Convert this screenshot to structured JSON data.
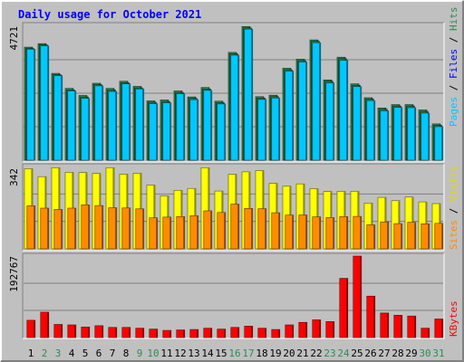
{
  "title": "Daily usage for October 2021",
  "colors": {
    "background": "#c0c0c0",
    "pages": "#00c8ff",
    "hits": "#2e8b57",
    "visits": "#ffff00",
    "sites": "#ff8c00",
    "kbytes": "#ff0000",
    "weekday_label": "#000000",
    "weekend_label": "#2e8b57",
    "separator": "#000000"
  },
  "legend": {
    "pages": "Pages",
    "files": "Files",
    "hits": "Hits",
    "visits": "Visits",
    "sites": "Sites",
    "kbytes": "KBytes",
    "separator": " / "
  },
  "chart_data": [
    {
      "type": "bar",
      "name": "hits-files-pages",
      "ymax_label": "4721",
      "ylim": [
        0,
        4721
      ],
      "categories": [
        "1",
        "2",
        "3",
        "4",
        "5",
        "6",
        "7",
        "8",
        "9",
        "10",
        "11",
        "12",
        "13",
        "14",
        "15",
        "16",
        "17",
        "18",
        "19",
        "20",
        "21",
        "22",
        "23",
        "24",
        "25",
        "26",
        "27",
        "28",
        "29",
        "30",
        "31"
      ],
      "weekend_days": [
        "2",
        "3",
        "9",
        "10",
        "16",
        "17",
        "23",
        "24",
        "30",
        "31"
      ],
      "series": [
        {
          "name": "Hits",
          "values": [
            3985,
            4110,
            3060,
            2530,
            2280,
            2710,
            2530,
            2780,
            2600,
            2090,
            2120,
            2440,
            2230,
            2560,
            2080,
            3800,
            4710,
            2240,
            2290,
            3240,
            3560,
            4240,
            2830,
            3630,
            2690,
            2200,
            1840,
            1960,
            1960,
            1770,
            1280
          ]
        },
        {
          "name": "Files",
          "values": [
            3935,
            4060,
            3010,
            2480,
            2230,
            2660,
            2480,
            2730,
            2550,
            2040,
            2070,
            2390,
            2180,
            2510,
            2030,
            3750,
            4660,
            2190,
            2240,
            3190,
            3510,
            4190,
            2780,
            3580,
            2640,
            2150,
            1790,
            1910,
            1910,
            1720,
            1230
          ]
        },
        {
          "name": "Pages",
          "values": [
            3910,
            4030,
            2980,
            2440,
            2180,
            2620,
            2420,
            2690,
            2510,
            1990,
            2020,
            2340,
            2130,
            2460,
            1980,
            3700,
            4620,
            2140,
            2190,
            3140,
            3460,
            4140,
            2720,
            3520,
            2590,
            2100,
            1740,
            1860,
            1850,
            1660,
            1180
          ]
        }
      ]
    },
    {
      "type": "bar",
      "name": "visits-sites",
      "ymax_label": "342",
      "ylim": [
        0,
        342
      ],
      "series": [
        {
          "name": "Visits",
          "values": [
            333,
            300,
            337,
            318,
            317,
            313,
            337,
            310,
            314,
            265,
            220,
            243,
            251,
            337,
            240,
            310,
            320,
            325,
            272,
            260,
            270,
            250,
            238,
            239,
            239,
            190,
            214,
            200,
            215,
            195,
            188
          ]
        },
        {
          "name": "Sites",
          "values": [
            179,
            169,
            164,
            169,
            183,
            180,
            171,
            170,
            166,
            129,
            132,
            134,
            138,
            158,
            151,
            186,
            168,
            167,
            150,
            140,
            141,
            133,
            130,
            134,
            135,
            100,
            112,
            105,
            110,
            104,
            106
          ]
        }
      ]
    },
    {
      "type": "bar",
      "name": "kbytes",
      "ymax_label": "192767",
      "ylim": [
        0,
        192767
      ],
      "series": [
        {
          "name": "KBytes",
          "values": [
            41000,
            60000,
            31000,
            30000,
            25000,
            28000,
            24000,
            24000,
            22000,
            20000,
            17000,
            18000,
            19000,
            22000,
            20000,
            24000,
            27000,
            22000,
            19000,
            30000,
            36000,
            42000,
            38000,
            140000,
            192767,
            98000,
            58000,
            53000,
            51000,
            22000,
            44000
          ]
        }
      ]
    }
  ]
}
